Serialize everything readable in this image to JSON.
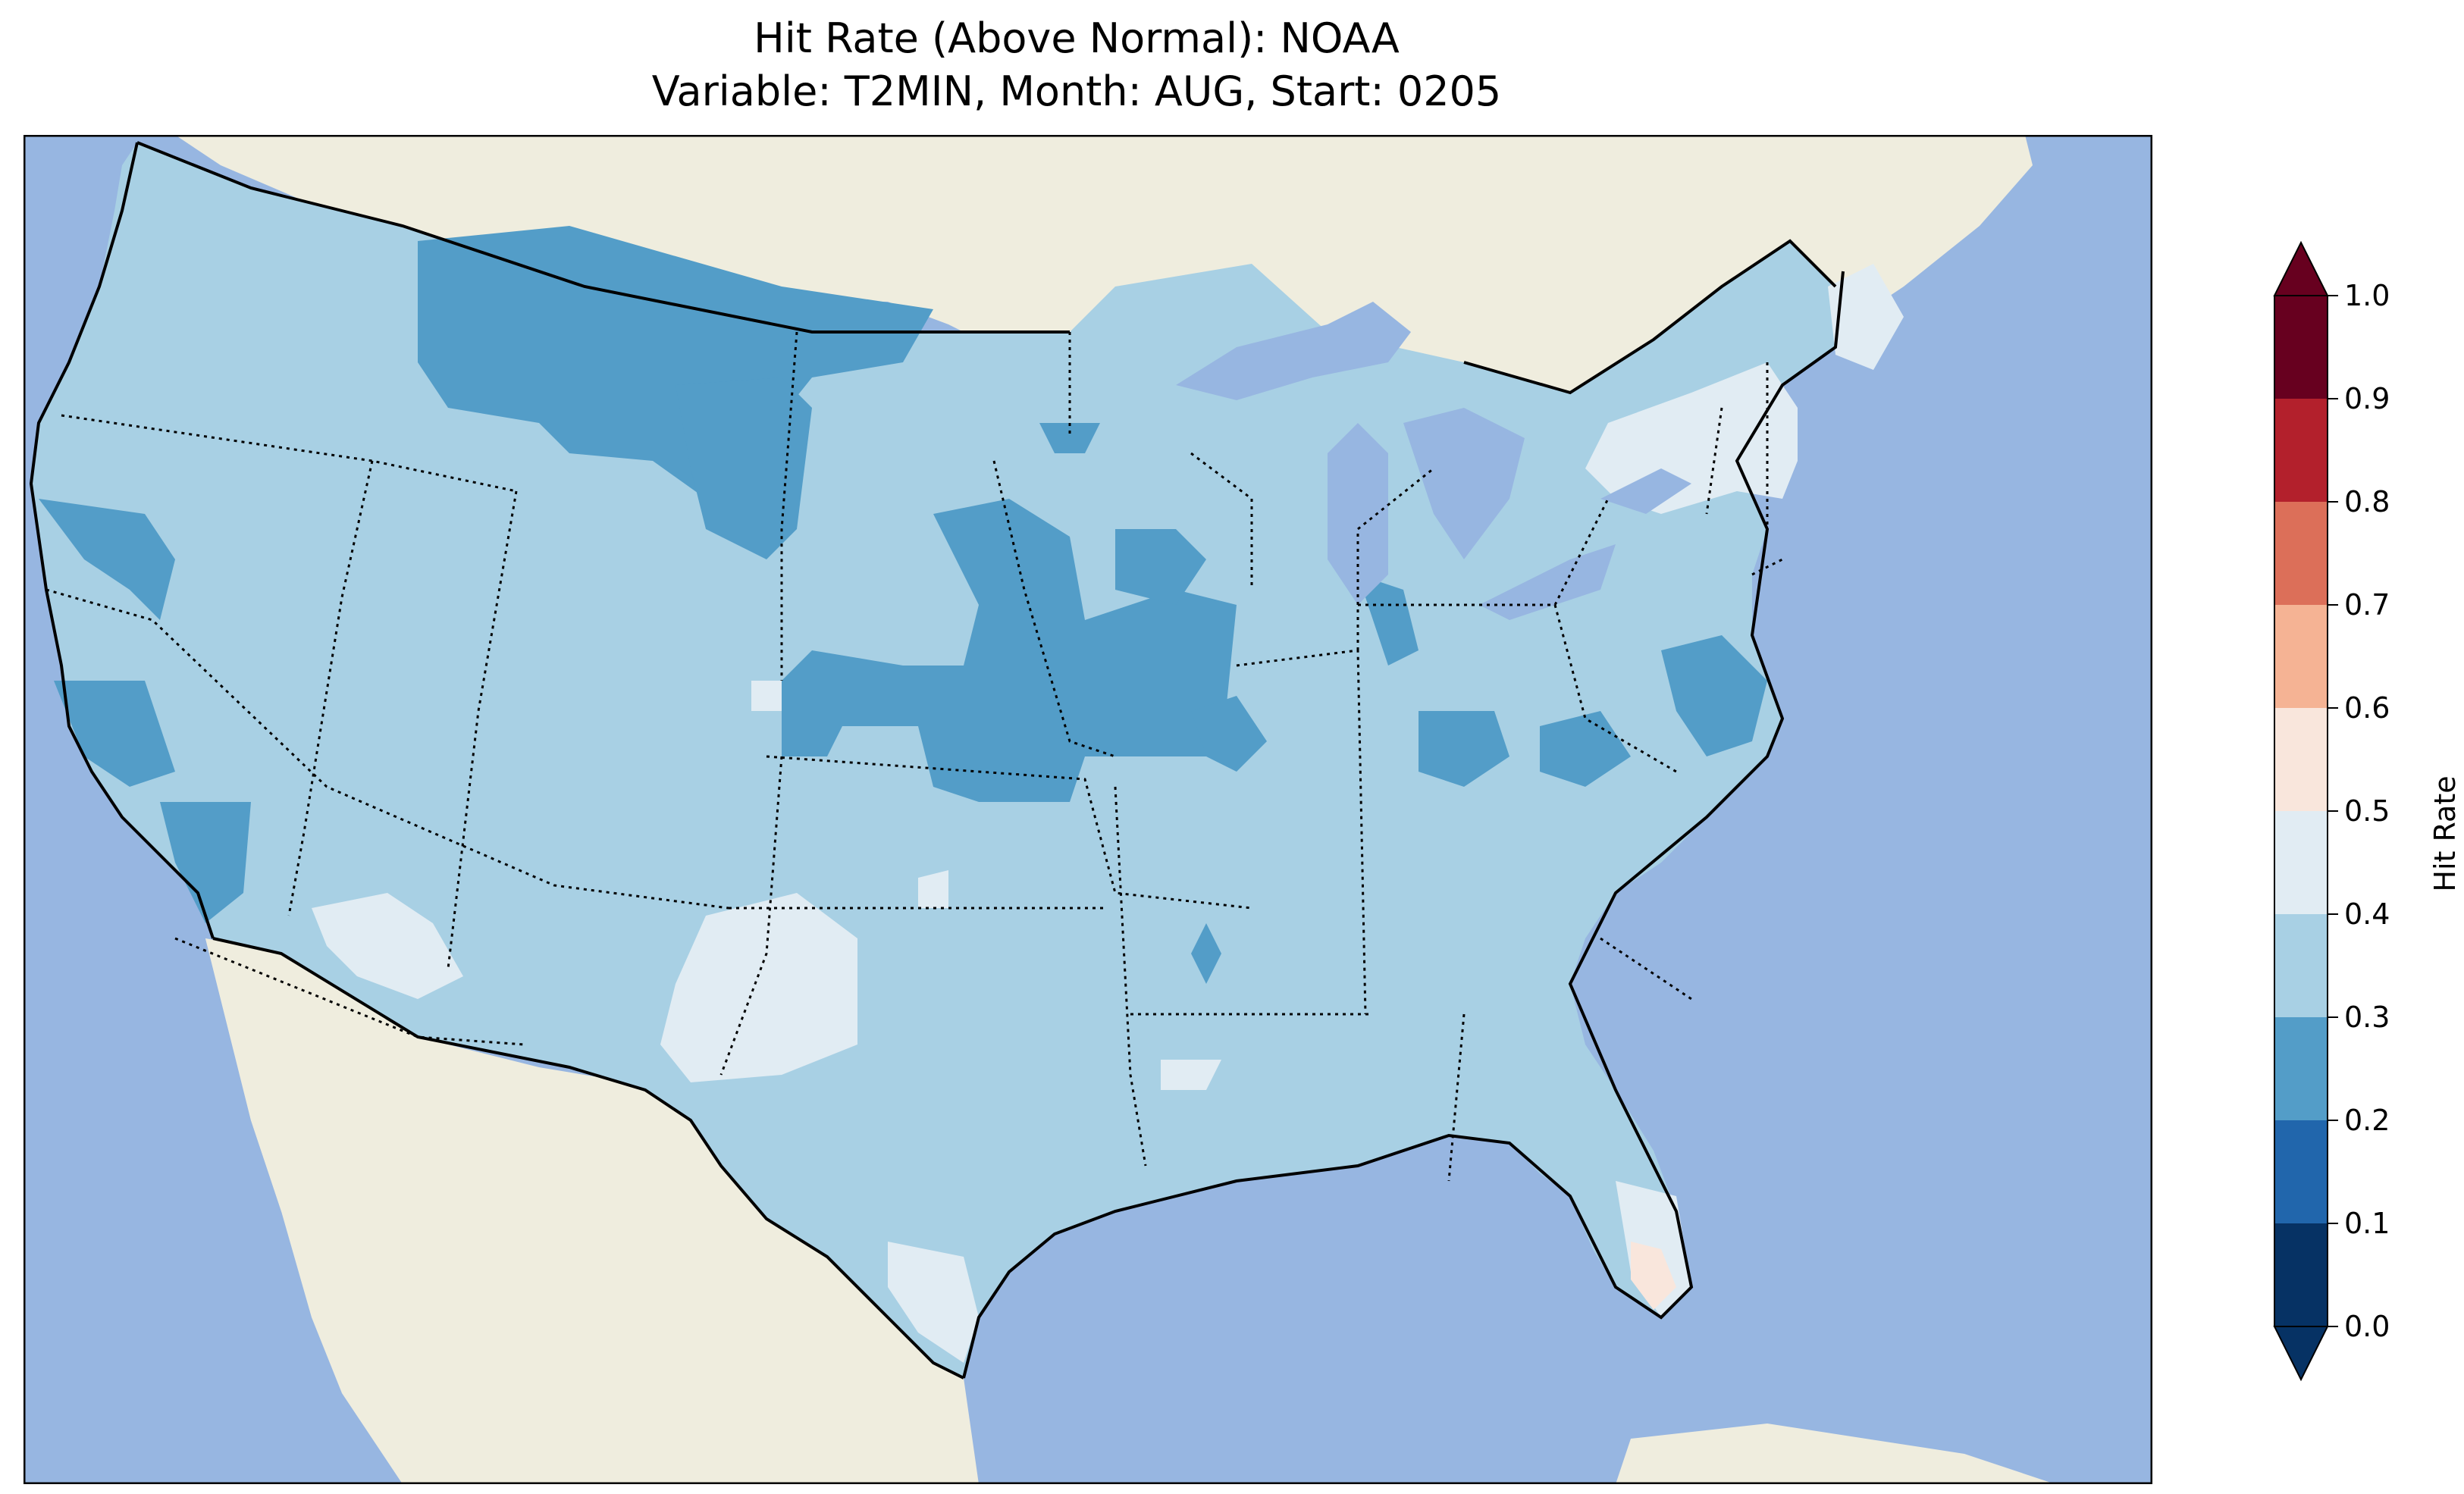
{
  "title_line1": "Hit Rate (Above Normal): NOAA",
  "title_line2": "Variable: T2MIN, Month: AUG, Start: 0205",
  "colorbar": {
    "label": "Hit Rate",
    "ticks": [
      "0.0",
      "0.1",
      "0.2",
      "0.3",
      "0.4",
      "0.5",
      "0.6",
      "0.7",
      "0.8",
      "0.9",
      "1.0"
    ],
    "bins": [
      {
        "range": [
          0.0,
          0.1
        ],
        "color": "#063264"
      },
      {
        "range": [
          0.1,
          0.2
        ],
        "color": "#2166ac"
      },
      {
        "range": [
          0.2,
          0.3
        ],
        "color": "#539dc8"
      },
      {
        "range": [
          0.3,
          0.4
        ],
        "color": "#a8d0e4"
      },
      {
        "range": [
          0.4,
          0.5
        ],
        "color": "#e1ecf3"
      },
      {
        "range": [
          0.5,
          0.6
        ],
        "color": "#f9e6dc"
      },
      {
        "range": [
          0.6,
          0.7
        ],
        "color": "#f5b394"
      },
      {
        "range": [
          0.7,
          0.8
        ],
        "color": "#dc6f59"
      },
      {
        "range": [
          0.8,
          0.9
        ],
        "color": "#b3202c"
      },
      {
        "range": [
          0.9,
          1.0
        ],
        "color": "#67001f"
      }
    ],
    "extend": "both"
  },
  "map": {
    "region": "Contiguous United States",
    "ocean_color": "#97b6e1",
    "land_color": "#efedde",
    "lake_color": "#97b6e1",
    "dominant_bin": "0.3-0.4",
    "regions_0.2_0.3": [
      "northern Montana",
      "Wyoming",
      "Nebraska",
      "Kansas",
      "Missouri",
      "Iowa",
      "central California",
      "southern California",
      "Indiana",
      "Kentucky",
      "Virginia"
    ],
    "regions_0.4_0.5": [
      "New England",
      "New York",
      "west Texas",
      "south Texas",
      "Arizona",
      "south Florida"
    ],
    "regions_0.5_0.6": [
      "southwest Florida"
    ]
  }
}
